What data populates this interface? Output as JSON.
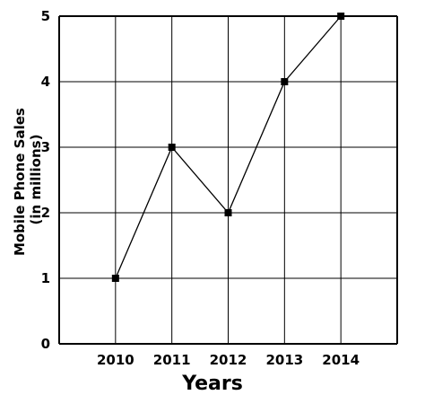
{
  "chart_data": {
    "type": "line",
    "title": "",
    "xlabel": "Years",
    "ylabel_lines": [
      "Mobile Phone Sales",
      "(in millions)"
    ],
    "categories": [
      "2010",
      "2011",
      "2012",
      "2013",
      "2014"
    ],
    "series": [
      {
        "values": [
          1,
          3,
          2,
          4,
          5
        ]
      }
    ],
    "ylim": [
      0,
      5
    ],
    "yticks": [
      "0",
      "1",
      "2",
      "3",
      "4",
      "5"
    ],
    "grid": true,
    "legend": "none",
    "colors": {
      "line": "#000000",
      "grid": "#000000",
      "marker": "#000000"
    }
  }
}
